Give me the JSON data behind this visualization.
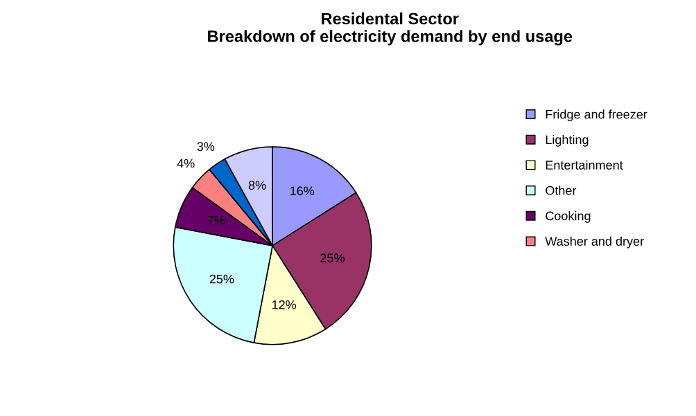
{
  "chart_data": {
    "type": "pie",
    "title": "Residental Sector\nBreakdown of electricity demand by end usage",
    "categories": [
      "Fridge and freezer",
      "Lighting",
      "Entertainment",
      "Other",
      "Cooking",
      "Washer and dryer",
      null,
      null
    ],
    "values": [
      16,
      25,
      12,
      25,
      7,
      4,
      3,
      8
    ],
    "value_labels": [
      "16%",
      "25%",
      "12%",
      "25%",
      "7%",
      "4%",
      "3%",
      "8%"
    ],
    "colors": [
      "#9999ff",
      "#993366",
      "#ffffcc",
      "#ccffff",
      "#660066",
      "#ff8080",
      "#0066cc",
      "#ccccff"
    ],
    "legend": "right"
  }
}
